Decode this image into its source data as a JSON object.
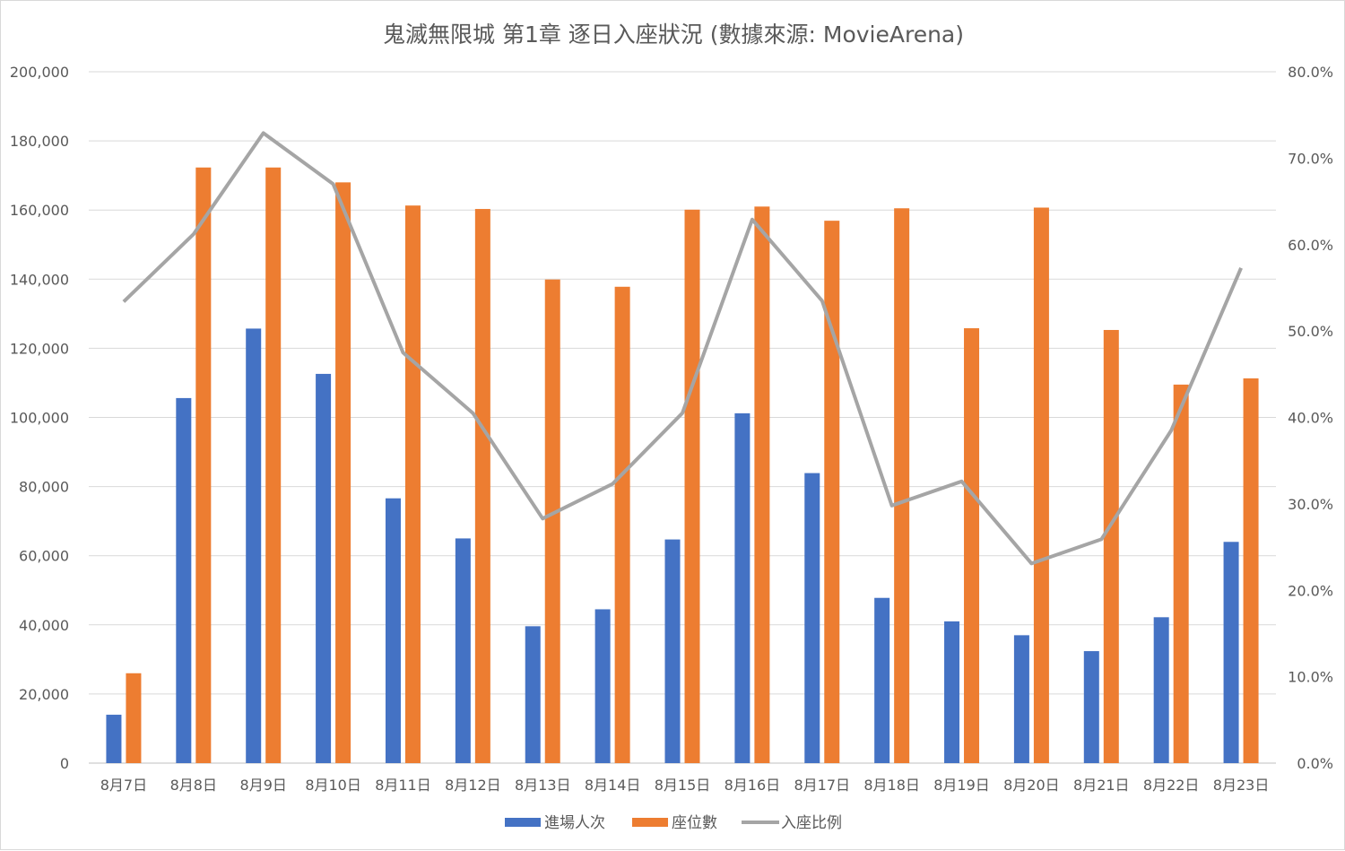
{
  "chart_data": {
    "type": "bar",
    "title": "鬼滅無限城 第1章 逐日入座狀況 (數據來源: MovieArena)",
    "categories": [
      "8月7日",
      "8月8日",
      "8月9日",
      "8月10日",
      "8月11日",
      "8月12日",
      "8月13日",
      "8月14日",
      "8月15日",
      "8月16日",
      "8月17日",
      "8月18日",
      "8月19日",
      "8月20日",
      "8月21日",
      "8月22日",
      "8月23日"
    ],
    "series": [
      {
        "name": "進場人次",
        "type": "bar",
        "axis": "left",
        "color": "#4472C4",
        "values": [
          14000,
          105600,
          125700,
          112600,
          76600,
          65000,
          39600,
          44500,
          64700,
          101200,
          83900,
          47800,
          41000,
          37000,
          32400,
          42200,
          64000
        ]
      },
      {
        "name": "座位數",
        "type": "bar",
        "axis": "left",
        "color": "#ED7D31",
        "values": [
          26000,
          172300,
          172300,
          168000,
          161300,
          160300,
          139900,
          137800,
          160100,
          161000,
          156900,
          160500,
          125800,
          160700,
          125300,
          109500,
          111300
        ]
      },
      {
        "name": "入座比例",
        "type": "line",
        "axis": "right",
        "color": "#A5A5A5",
        "values": [
          0.534,
          0.612,
          0.729,
          0.67,
          0.475,
          0.405,
          0.283,
          0.323,
          0.405,
          0.629,
          0.535,
          0.298,
          0.326,
          0.231,
          0.259,
          0.385,
          0.573
        ]
      }
    ],
    "y_left": {
      "min": 0,
      "max": 200000,
      "step": 20000,
      "ticks": [
        "0",
        "20,000",
        "40,000",
        "60,000",
        "80,000",
        "100,000",
        "120,000",
        "140,000",
        "160,000",
        "180,000",
        "200,000"
      ]
    },
    "y_right": {
      "min": 0,
      "max": 0.8,
      "step": 0.1,
      "ticks": [
        "0.0%",
        "10.0%",
        "20.0%",
        "30.0%",
        "40.0%",
        "50.0%",
        "60.0%",
        "70.0%",
        "80.0%"
      ]
    },
    "grid": true,
    "legend_position": "bottom"
  }
}
